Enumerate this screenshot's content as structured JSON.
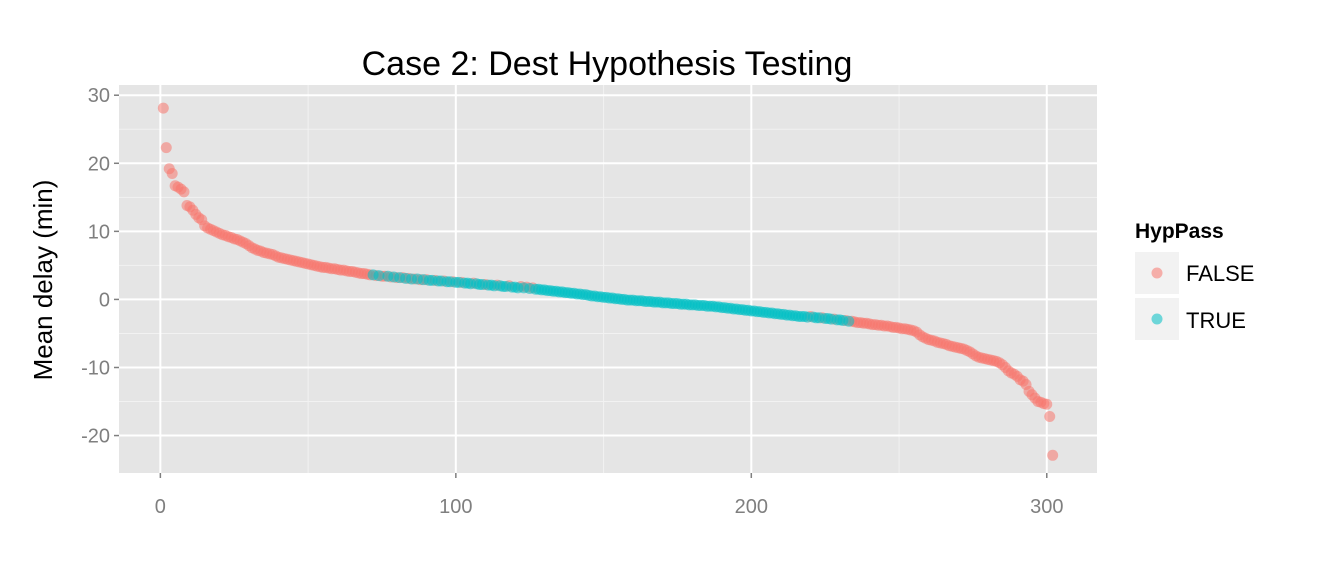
{
  "chart_data": {
    "type": "scatter",
    "title": "Case 2: Dest Hypothesis Testing",
    "xlabel": "",
    "ylabel": "Mean delay (min)",
    "xlim": [
      -14,
      317
    ],
    "ylim": [
      -25.5,
      31.5
    ],
    "x_ticks": [
      0,
      100,
      200,
      300
    ],
    "x_tick_labels": [
      "0",
      "100",
      "200",
      "300"
    ],
    "y_ticks": [
      -20,
      -10,
      0,
      10,
      20,
      30
    ],
    "y_tick_labels": [
      "-20",
      "-10",
      "0",
      "10",
      "20",
      "30"
    ],
    "grid": true,
    "legend": {
      "title": "HypPass",
      "position": "right",
      "entries": [
        {
          "label": "FALSE",
          "color": "#F8766D"
        },
        {
          "label": "TRUE",
          "color": "#00BFC4"
        }
      ]
    },
    "series": [
      {
        "name": "FALSE",
        "color": "#F8766D",
        "points": [
          [
            1,
            28.1
          ],
          [
            2,
            22.3
          ],
          [
            3,
            19.2
          ],
          [
            4,
            18.5
          ],
          [
            5,
            16.7
          ],
          [
            6,
            16.5
          ],
          [
            7,
            16.2
          ],
          [
            8,
            15.8
          ],
          [
            9,
            13.8
          ],
          [
            10,
            13.6
          ],
          [
            11,
            13.1
          ],
          [
            12,
            12.5
          ],
          [
            13,
            12.0
          ],
          [
            14,
            11.7
          ],
          [
            15,
            10.8
          ],
          [
            16,
            10.5
          ],
          [
            17,
            10.3
          ],
          [
            18,
            10.1
          ],
          [
            19,
            9.9
          ],
          [
            20,
            9.7
          ],
          [
            21,
            9.5
          ],
          [
            22,
            9.4
          ],
          [
            23,
            9.2
          ],
          [
            24,
            9.1
          ],
          [
            25,
            8.9
          ],
          [
            26,
            8.8
          ],
          [
            27,
            8.6
          ],
          [
            28,
            8.4
          ],
          [
            29,
            8.2
          ],
          [
            30,
            7.9
          ],
          [
            31,
            7.6
          ],
          [
            32,
            7.4
          ],
          [
            33,
            7.2
          ],
          [
            34,
            7.1
          ],
          [
            35,
            6.9
          ],
          [
            36,
            6.8
          ],
          [
            37,
            6.7
          ],
          [
            38,
            6.6
          ],
          [
            39,
            6.4
          ],
          [
            40,
            6.2
          ],
          [
            41,
            6.1
          ],
          [
            42,
            6.0
          ],
          [
            43,
            5.9
          ],
          [
            44,
            5.8
          ],
          [
            45,
            5.7
          ],
          [
            46,
            5.6
          ],
          [
            47,
            5.5
          ],
          [
            48,
            5.4
          ],
          [
            49,
            5.3
          ],
          [
            50,
            5.2
          ],
          [
            51,
            5.1
          ],
          [
            52,
            5.0
          ],
          [
            53,
            4.9
          ],
          [
            54,
            4.8
          ],
          [
            55,
            4.7
          ],
          [
            56,
            4.7
          ],
          [
            57,
            4.6
          ],
          [
            58,
            4.5
          ],
          [
            59,
            4.5
          ],
          [
            60,
            4.4
          ],
          [
            61,
            4.3
          ],
          [
            62,
            4.3
          ],
          [
            63,
            4.2
          ],
          [
            64,
            4.1
          ],
          [
            65,
            4.1
          ],
          [
            66,
            4.0
          ],
          [
            67,
            3.9
          ],
          [
            68,
            3.8
          ],
          [
            69,
            3.8
          ],
          [
            70,
            3.7
          ],
          [
            71,
            3.6
          ],
          [
            73,
            3.5
          ],
          [
            75,
            3.4
          ],
          [
            76,
            3.4
          ],
          [
            78,
            3.3
          ],
          [
            80,
            3.2
          ],
          [
            82,
            3.2
          ],
          [
            84,
            3.1
          ],
          [
            86,
            3.0
          ],
          [
            88,
            2.9
          ],
          [
            90,
            2.9
          ],
          [
            93,
            2.8
          ],
          [
            96,
            2.7
          ],
          [
            99,
            2.6
          ],
          [
            102,
            2.5
          ],
          [
            106,
            2.4
          ],
          [
            110,
            2.2
          ],
          [
            114,
            2.1
          ],
          [
            118,
            2.0
          ],
          [
            122,
            1.9
          ],
          [
            124,
            1.8
          ],
          [
            126,
            1.7
          ],
          [
            220,
            -2.5
          ],
          [
            224,
            -2.7
          ],
          [
            228,
            -2.9
          ],
          [
            232,
            -3.1
          ],
          [
            234,
            -3.2
          ],
          [
            235,
            -3.3
          ],
          [
            236,
            -3.4
          ],
          [
            237,
            -3.4
          ],
          [
            238,
            -3.5
          ],
          [
            239,
            -3.5
          ],
          [
            240,
            -3.6
          ],
          [
            241,
            -3.7
          ],
          [
            242,
            -3.7
          ],
          [
            243,
            -3.8
          ],
          [
            244,
            -3.8
          ],
          [
            245,
            -3.9
          ],
          [
            246,
            -3.9
          ],
          [
            247,
            -4.0
          ],
          [
            248,
            -4.1
          ],
          [
            249,
            -4.1
          ],
          [
            250,
            -4.2
          ],
          [
            251,
            -4.3
          ],
          [
            252,
            -4.3
          ],
          [
            253,
            -4.4
          ],
          [
            254,
            -4.5
          ],
          [
            255,
            -4.6
          ],
          [
            256,
            -4.8
          ],
          [
            257,
            -5.2
          ],
          [
            258,
            -5.5
          ],
          [
            259,
            -5.7
          ],
          [
            260,
            -5.9
          ],
          [
            261,
            -6.0
          ],
          [
            262,
            -6.1
          ],
          [
            263,
            -6.3
          ],
          [
            264,
            -6.4
          ],
          [
            265,
            -6.5
          ],
          [
            266,
            -6.6
          ],
          [
            267,
            -6.8
          ],
          [
            268,
            -6.9
          ],
          [
            269,
            -7.0
          ],
          [
            270,
            -7.1
          ],
          [
            271,
            -7.2
          ],
          [
            272,
            -7.3
          ],
          [
            273,
            -7.5
          ],
          [
            274,
            -7.7
          ],
          [
            275,
            -8.0
          ],
          [
            276,
            -8.3
          ],
          [
            277,
            -8.5
          ],
          [
            278,
            -8.6
          ],
          [
            279,
            -8.7
          ],
          [
            280,
            -8.8
          ],
          [
            281,
            -8.9
          ],
          [
            282,
            -9.0
          ],
          [
            283,
            -9.1
          ],
          [
            284,
            -9.3
          ],
          [
            285,
            -9.6
          ],
          [
            286,
            -10.0
          ],
          [
            287,
            -10.5
          ],
          [
            288,
            -10.8
          ],
          [
            289,
            -11.0
          ],
          [
            290,
            -11.3
          ],
          [
            291,
            -11.8
          ],
          [
            292,
            -12.0
          ],
          [
            293,
            -12.5
          ],
          [
            294,
            -13.5
          ],
          [
            295,
            -14.0
          ],
          [
            296,
            -14.5
          ],
          [
            297,
            -15.0
          ],
          [
            298,
            -15.1
          ],
          [
            299,
            -15.3
          ],
          [
            300,
            -15.4
          ],
          [
            301,
            -17.2
          ],
          [
            302,
            -22.9
          ]
        ]
      },
      {
        "name": "TRUE",
        "color": "#00BFC4",
        "points": [
          [
            72,
            3.6
          ],
          [
            74,
            3.5
          ],
          [
            77,
            3.4
          ],
          [
            79,
            3.3
          ],
          [
            81,
            3.2
          ],
          [
            83,
            3.1
          ],
          [
            85,
            3.0
          ],
          [
            87,
            3.0
          ],
          [
            89,
            2.9
          ],
          [
            91,
            2.8
          ],
          [
            92,
            2.8
          ],
          [
            94,
            2.7
          ],
          [
            95,
            2.7
          ],
          [
            97,
            2.6
          ],
          [
            98,
            2.6
          ],
          [
            100,
            2.5
          ],
          [
            101,
            2.5
          ],
          [
            103,
            2.4
          ],
          [
            104,
            2.4
          ],
          [
            105,
            2.3
          ],
          [
            107,
            2.3
          ],
          [
            108,
            2.2
          ],
          [
            109,
            2.2
          ],
          [
            111,
            2.1
          ],
          [
            112,
            2.1
          ],
          [
            113,
            2.0
          ],
          [
            115,
            2.0
          ],
          [
            116,
            1.9
          ],
          [
            117,
            1.9
          ],
          [
            119,
            1.8
          ],
          [
            120,
            1.8
          ],
          [
            121,
            1.7
          ],
          [
            123,
            1.7
          ],
          [
            125,
            1.6
          ],
          [
            127,
            1.5
          ],
          [
            128,
            1.5
          ],
          [
            129,
            1.4
          ],
          [
            130,
            1.4
          ],
          [
            131,
            1.3
          ],
          [
            132,
            1.3
          ],
          [
            133,
            1.2
          ],
          [
            134,
            1.2
          ],
          [
            135,
            1.1
          ],
          [
            136,
            1.1
          ],
          [
            137,
            1.0
          ],
          [
            138,
            1.0
          ],
          [
            139,
            0.9
          ],
          [
            140,
            0.9
          ],
          [
            141,
            0.8
          ],
          [
            142,
            0.8
          ],
          [
            143,
            0.7
          ],
          [
            144,
            0.7
          ],
          [
            145,
            0.6
          ],
          [
            146,
            0.5
          ],
          [
            147,
            0.5
          ],
          [
            148,
            0.4
          ],
          [
            149,
            0.4
          ],
          [
            150,
            0.3
          ],
          [
            151,
            0.3
          ],
          [
            152,
            0.2
          ],
          [
            153,
            0.2
          ],
          [
            154,
            0.1
          ],
          [
            155,
            0.1
          ],
          [
            156,
            0.0
          ],
          [
            157,
            0.0
          ],
          [
            158,
            -0.1
          ],
          [
            159,
            -0.1
          ],
          [
            160,
            -0.1
          ],
          [
            161,
            -0.2
          ],
          [
            162,
            -0.2
          ],
          [
            163,
            -0.2
          ],
          [
            164,
            -0.3
          ],
          [
            165,
            -0.3
          ],
          [
            166,
            -0.3
          ],
          [
            167,
            -0.4
          ],
          [
            168,
            -0.4
          ],
          [
            169,
            -0.4
          ],
          [
            170,
            -0.5
          ],
          [
            171,
            -0.5
          ],
          [
            172,
            -0.5
          ],
          [
            173,
            -0.6
          ],
          [
            174,
            -0.6
          ],
          [
            175,
            -0.6
          ],
          [
            176,
            -0.7
          ],
          [
            177,
            -0.7
          ],
          [
            178,
            -0.7
          ],
          [
            179,
            -0.8
          ],
          [
            180,
            -0.8
          ],
          [
            181,
            -0.8
          ],
          [
            182,
            -0.9
          ],
          [
            183,
            -0.9
          ],
          [
            184,
            -0.9
          ],
          [
            185,
            -1.0
          ],
          [
            186,
            -1.0
          ],
          [
            187,
            -1.0
          ],
          [
            188,
            -1.1
          ],
          [
            189,
            -1.1
          ],
          [
            190,
            -1.2
          ],
          [
            191,
            -1.2
          ],
          [
            192,
            -1.3
          ],
          [
            193,
            -1.3
          ],
          [
            194,
            -1.4
          ],
          [
            195,
            -1.4
          ],
          [
            196,
            -1.5
          ],
          [
            197,
            -1.5
          ],
          [
            198,
            -1.6
          ],
          [
            199,
            -1.6
          ],
          [
            200,
            -1.7
          ],
          [
            201,
            -1.7
          ],
          [
            202,
            -1.8
          ],
          [
            203,
            -1.8
          ],
          [
            204,
            -1.9
          ],
          [
            205,
            -1.9
          ],
          [
            206,
            -2.0
          ],
          [
            207,
            -2.0
          ],
          [
            208,
            -2.1
          ],
          [
            209,
            -2.1
          ],
          [
            210,
            -2.2
          ],
          [
            211,
            -2.2
          ],
          [
            212,
            -2.3
          ],
          [
            213,
            -2.3
          ],
          [
            214,
            -2.4
          ],
          [
            215,
            -2.4
          ],
          [
            216,
            -2.5
          ],
          [
            217,
            -2.5
          ],
          [
            218,
            -2.5
          ],
          [
            219,
            -2.6
          ],
          [
            221,
            -2.6
          ],
          [
            222,
            -2.7
          ],
          [
            223,
            -2.7
          ],
          [
            225,
            -2.8
          ],
          [
            226,
            -2.8
          ],
          [
            227,
            -2.9
          ],
          [
            229,
            -3.0
          ],
          [
            230,
            -3.0
          ],
          [
            231,
            -3.1
          ],
          [
            233,
            -3.2
          ]
        ]
      }
    ]
  }
}
